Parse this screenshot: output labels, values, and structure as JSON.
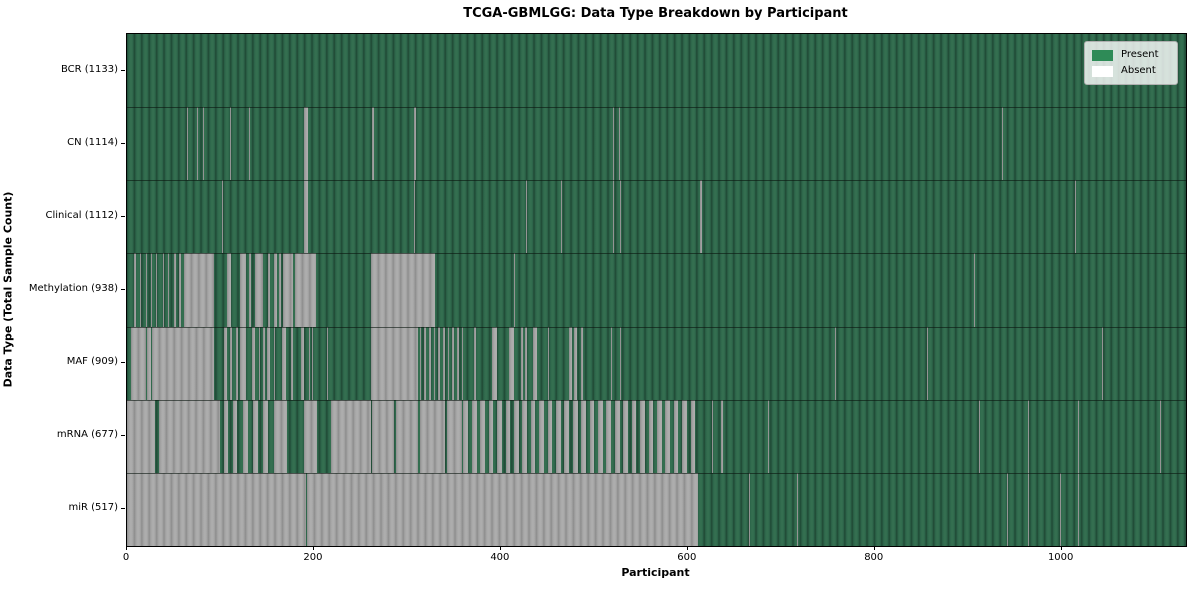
{
  "chart_data": {
    "type": "heatmap",
    "title": "TCGA-GBMLGG: Data Type Breakdown by Participant",
    "xlabel": "Participant",
    "ylabel": "Data Type (Total Sample Count)",
    "x_min": 0,
    "x_max": 1133,
    "x_ticks": [
      0,
      200,
      400,
      600,
      800,
      1000
    ],
    "grid": false,
    "legend": {
      "position": "upper right",
      "entries": [
        {
          "label": "Present",
          "color": "#2e8b57"
        },
        {
          "label": "Absent",
          "color": "#ffffff"
        }
      ]
    },
    "colors": {
      "present_stripe_light": "#346f50",
      "present_stripe_dark": "#1f4834",
      "absent_stripe_light": "#adadad",
      "absent_stripe_dark": "#8d8d8d"
    },
    "rows": [
      {
        "label": "BCR (1133)",
        "data_type": "BCR",
        "total_samples": 1133,
        "absent_ranges": []
      },
      {
        "label": "CN (1114)",
        "data_type": "CN",
        "total_samples": 1114,
        "absent_ranges": [
          [
            64,
            65
          ],
          [
            75,
            76
          ],
          [
            81,
            82
          ],
          [
            110,
            111
          ],
          [
            130,
            131
          ],
          [
            189,
            194
          ],
          [
            262,
            264
          ],
          [
            307,
            309
          ],
          [
            520,
            521
          ],
          [
            526,
            527
          ],
          [
            936,
            937
          ]
        ]
      },
      {
        "label": "Clinical (1112)",
        "data_type": "Clinical",
        "total_samples": 1112,
        "absent_ranges": [
          [
            102,
            103
          ],
          [
            189,
            194
          ],
          [
            307,
            308
          ],
          [
            427,
            428
          ],
          [
            464,
            465
          ],
          [
            520,
            521
          ],
          [
            527,
            528
          ],
          [
            613,
            615
          ],
          [
            1014,
            1015
          ]
        ]
      },
      {
        "label": "Methylation (938)",
        "data_type": "Methylation",
        "total_samples": 938,
        "absent_ranges": [
          [
            8,
            9
          ],
          [
            14,
            15
          ],
          [
            20,
            21
          ],
          [
            26,
            27
          ],
          [
            31,
            32
          ],
          [
            38,
            39
          ],
          [
            44,
            45
          ],
          [
            50,
            52
          ],
          [
            56,
            58
          ],
          [
            61,
            93
          ],
          [
            107,
            111
          ],
          [
            121,
            127
          ],
          [
            131,
            133
          ],
          [
            137,
            145
          ],
          [
            151,
            153
          ],
          [
            157,
            160
          ],
          [
            163,
            165
          ],
          [
            167,
            178
          ],
          [
            180,
            202
          ],
          [
            261,
            330
          ],
          [
            414,
            415
          ],
          [
            906,
            907
          ]
        ]
      },
      {
        "label": "MAF (909)",
        "data_type": "MAF",
        "total_samples": 909,
        "absent_ranges": [
          [
            4,
            20
          ],
          [
            21,
            26
          ],
          [
            27,
            93
          ],
          [
            104,
            107
          ],
          [
            110,
            112
          ],
          [
            117,
            119
          ],
          [
            121,
            127
          ],
          [
            134,
            137
          ],
          [
            141,
            142
          ],
          [
            146,
            147
          ],
          [
            150,
            153
          ],
          [
            157,
            158
          ],
          [
            166,
            170
          ],
          [
            175,
            178
          ],
          [
            186,
            189
          ],
          [
            195,
            196
          ],
          [
            198,
            199
          ],
          [
            214,
            215
          ],
          [
            261,
            311
          ],
          [
            313,
            315
          ],
          [
            318,
            320
          ],
          [
            323,
            325
          ],
          [
            328,
            330
          ],
          [
            333,
            335
          ],
          [
            338,
            340
          ],
          [
            343,
            345
          ],
          [
            348,
            350
          ],
          [
            353,
            355
          ],
          [
            358,
            359
          ],
          [
            371,
            373
          ],
          [
            391,
            396
          ],
          [
            409,
            414
          ],
          [
            421,
            424
          ],
          [
            426,
            428
          ],
          [
            434,
            439
          ],
          [
            450,
            451
          ],
          [
            473,
            476
          ],
          [
            478,
            481
          ],
          [
            486,
            488
          ],
          [
            518,
            519
          ],
          [
            527,
            528
          ],
          [
            757,
            758
          ],
          [
            856,
            857
          ],
          [
            1043,
            1044
          ]
        ]
      },
      {
        "label": "mRNA (677)",
        "data_type": "mRNA",
        "total_samples": 677,
        "absent_ranges": [
          [
            0,
            30
          ],
          [
            34,
            100
          ],
          [
            104,
            108
          ],
          [
            113,
            118
          ],
          [
            124,
            129
          ],
          [
            135,
            140
          ],
          [
            146,
            151
          ],
          [
            157,
            171
          ],
          [
            189,
            203
          ],
          [
            218,
            261
          ],
          [
            262,
            286
          ],
          [
            288,
            311
          ],
          [
            314,
            340
          ],
          [
            342,
            358
          ],
          [
            360,
            365
          ],
          [
            369,
            374
          ],
          [
            378,
            383
          ],
          [
            387,
            392
          ],
          [
            396,
            401
          ],
          [
            405,
            410
          ],
          [
            414,
            419
          ],
          [
            423,
            428
          ],
          [
            432,
            437
          ],
          [
            441,
            446
          ],
          [
            450,
            455
          ],
          [
            459,
            464
          ],
          [
            468,
            473
          ],
          [
            477,
            482
          ],
          [
            486,
            491
          ],
          [
            495,
            500
          ],
          [
            504,
            509
          ],
          [
            513,
            518
          ],
          [
            522,
            527
          ],
          [
            531,
            536
          ],
          [
            540,
            545
          ],
          [
            549,
            554
          ],
          [
            558,
            563
          ],
          [
            567,
            572
          ],
          [
            576,
            581
          ],
          [
            585,
            590
          ],
          [
            594,
            599
          ],
          [
            603,
            608
          ],
          [
            626,
            627
          ],
          [
            636,
            637
          ],
          [
            686,
            687
          ],
          [
            912,
            913
          ],
          [
            964,
            965
          ],
          [
            1017,
            1019
          ],
          [
            1105,
            1106
          ]
        ]
      },
      {
        "label": "miR (517)",
        "data_type": "miR",
        "total_samples": 517,
        "absent_ranges": [
          [
            0,
            191
          ],
          [
            193,
            611
          ],
          [
            665,
            666
          ],
          [
            717,
            718
          ],
          [
            941,
            942
          ],
          [
            964,
            965
          ],
          [
            998,
            999
          ],
          [
            1017,
            1019
          ]
        ]
      }
    ]
  }
}
